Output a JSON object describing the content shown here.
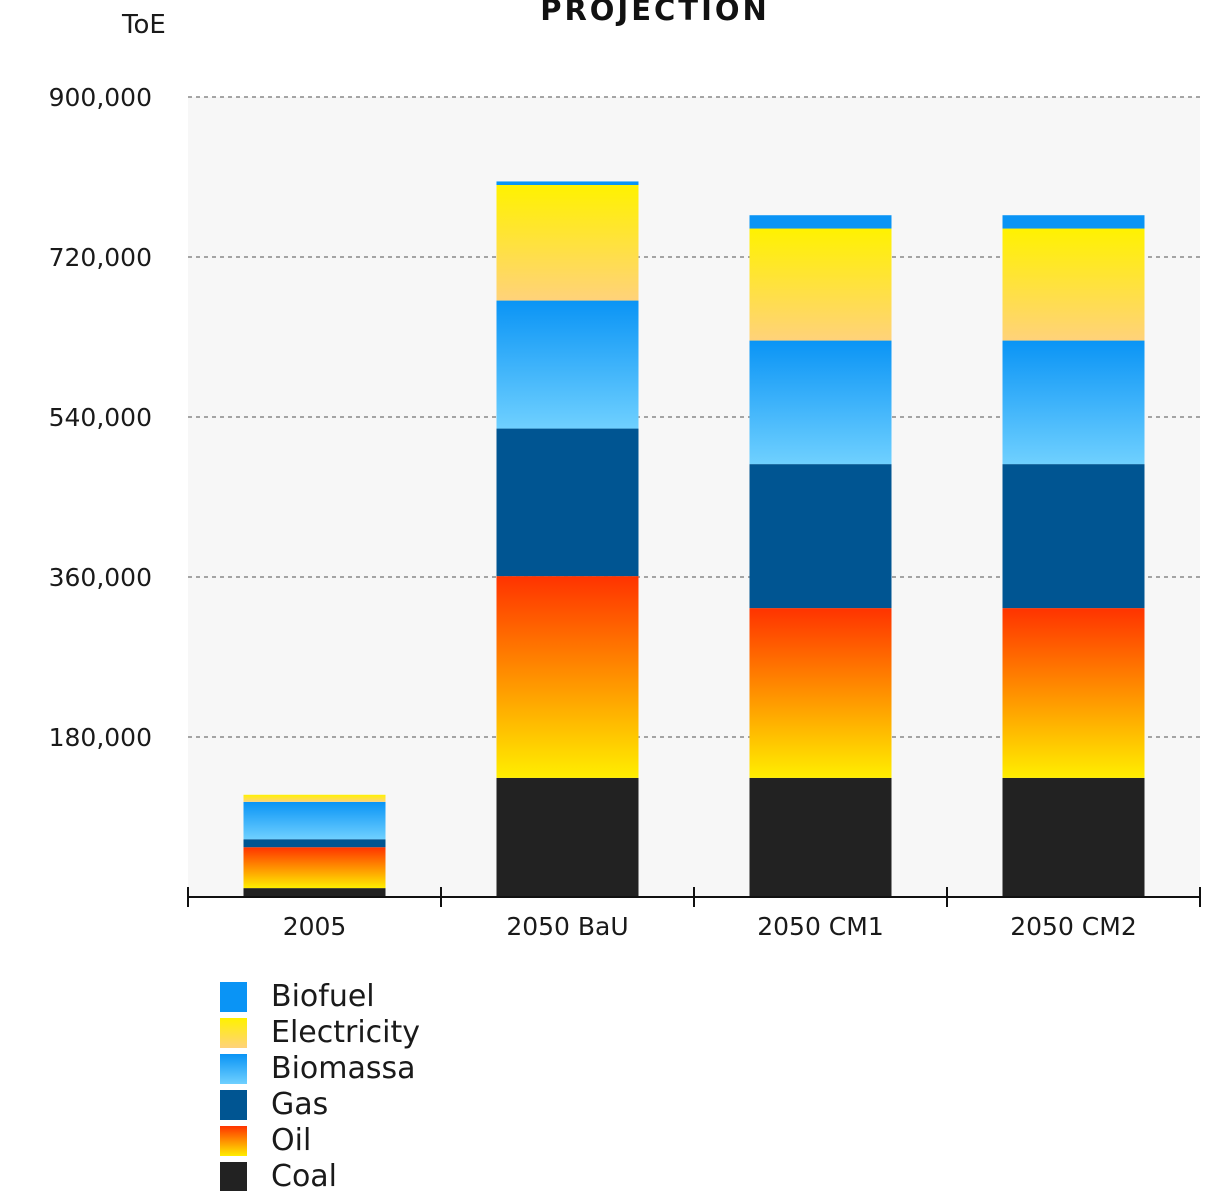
{
  "chart_data": {
    "type": "bar",
    "stacked": true,
    "title": "PROJECTION",
    "ylabel": "ToE",
    "xlabel": "",
    "ylim": [
      0,
      900000
    ],
    "yticks": [
      180000,
      360000,
      540000,
      720000,
      900000
    ],
    "ytick_labels": [
      "180,000",
      "360,000",
      "540,000",
      "720,000",
      "900,000"
    ],
    "grid": "horizontal dashed",
    "legend_position": "bottom-left",
    "categories": [
      "2005",
      "2050 BaU",
      "2050 CM1",
      "2050 CM2"
    ],
    "series": [
      {
        "name": "Coal",
        "values": [
          10000,
          134000,
          134000,
          134000
        ]
      },
      {
        "name": "Oil",
        "values": [
          46000,
          227000,
          191000,
          191000
        ]
      },
      {
        "name": "Gas",
        "values": [
          9000,
          166000,
          162000,
          162000
        ]
      },
      {
        "name": "Biomassa",
        "values": [
          42000,
          144000,
          139000,
          139000
        ]
      },
      {
        "name": "Electricity",
        "values": [
          8000,
          130000,
          126000,
          126000
        ]
      },
      {
        "name": "Biofuel",
        "values": [
          0,
          4000,
          15000,
          15000
        ]
      }
    ]
  },
  "legend_order": [
    "Biofuel",
    "Electricity",
    "Biomassa",
    "Gas",
    "Oil",
    "Coal"
  ],
  "series_colors": {
    "Coal": [
      "#222222",
      "#222222"
    ],
    "Oil": [
      "#ff3300",
      "#ffee00"
    ],
    "Gas": [
      "#005592",
      "#005592"
    ],
    "Biomassa": [
      "#0a94f5",
      "#6fd0ff"
    ],
    "Electricity": [
      "#fff200",
      "#ffd27a"
    ],
    "Biofuel": [
      "#0a94f5",
      "#0a94f5"
    ]
  }
}
